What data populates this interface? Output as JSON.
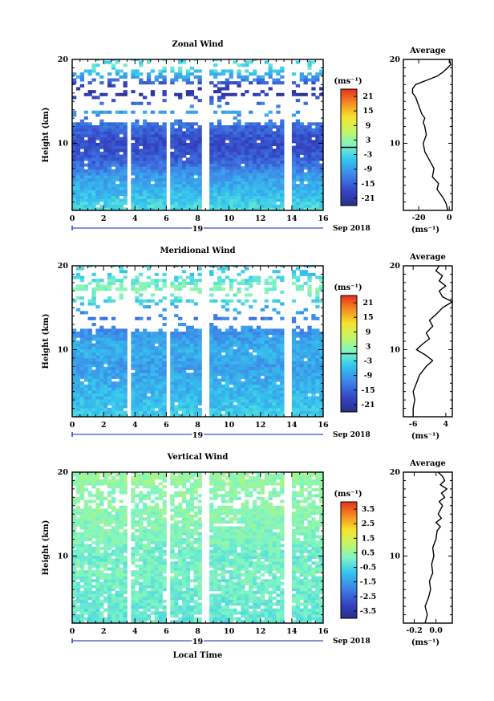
{
  "figure": {
    "date_label": "Sep 2018",
    "day_label": "19",
    "shared_xlabel": "Local Time"
  },
  "chart_data": [
    {
      "type": "heatmap",
      "title": "Zonal Wind",
      "xlabel": "",
      "ylabel": "Height (km)",
      "xlim": [
        0,
        16
      ],
      "ylim": [
        2,
        20
      ],
      "x_ticks": [
        0,
        2,
        4,
        6,
        8,
        10,
        12,
        14,
        16
      ],
      "y_ticks": [
        10,
        20
      ],
      "colorbar": {
        "unit": "(ms⁻¹)",
        "range": [
          -24,
          24
        ],
        "ticks": [
          21,
          15,
          9,
          3,
          -3,
          -9,
          -15,
          -21
        ],
        "tick_labels": [
          "21",
          "15",
          "9",
          "3",
          "-3",
          "-9",
          "-15",
          "-21"
        ],
        "contour_level": 0
      },
      "data_gaps_hours": [
        [
          3.4,
          3.8
        ],
        [
          5.9,
          6.3
        ],
        [
          8.2,
          8.7
        ],
        [
          13.5,
          13.9
        ]
      ],
      "profile_heights_km": [
        2,
        4,
        6,
        8,
        10,
        12,
        14,
        16,
        17,
        18,
        19
      ],
      "values_by_height": [
        -2,
        -6,
        -9,
        -15,
        -18,
        -14,
        -8,
        -22,
        -18,
        -8,
        -2
      ],
      "average": {
        "title": "Average",
        "xlabel": "(ms⁻¹)",
        "xlim": [
          -30,
          2
        ],
        "x_ticks": [
          -20,
          0
        ],
        "x_tick_labels": [
          "-20",
          "0"
        ],
        "y_ticks": [
          10,
          20
        ],
        "heights": [
          2.0,
          2.8,
          3.5,
          4.5,
          5.2,
          6.0,
          7.0,
          8.0,
          9.0,
          10.0,
          11.0,
          12.0,
          12.5,
          13.0,
          13.5,
          14.0,
          14.5,
          15.0,
          15.5,
          16.0,
          16.5,
          17.0,
          17.5,
          18.0,
          18.5,
          19.0,
          19.4,
          20.0
        ],
        "values": [
          -1,
          -2,
          -4,
          -8,
          -7,
          -11,
          -10,
          -13,
          -16,
          -17,
          -15,
          -16,
          -17,
          -16,
          -18,
          -19,
          -20,
          -21,
          -22,
          -24,
          -24,
          -22,
          -15,
          -8,
          -4,
          -1,
          1,
          0
        ]
      }
    },
    {
      "type": "heatmap",
      "title": "Meridional Wind",
      "xlabel": "",
      "ylabel": "Height (km)",
      "xlim": [
        0,
        16
      ],
      "ylim": [
        2,
        20
      ],
      "x_ticks": [
        0,
        2,
        4,
        6,
        8,
        10,
        12,
        14,
        16
      ],
      "y_ticks": [
        10,
        20
      ],
      "colorbar": {
        "unit": "(ms⁻¹)",
        "range": [
          -24,
          24
        ],
        "ticks": [
          21,
          15,
          9,
          3,
          -3,
          -9,
          -15,
          -21
        ],
        "tick_labels": [
          "21",
          "15",
          "9",
          "3",
          "-3",
          "-9",
          "-15",
          "-21"
        ],
        "contour_level": 0
      },
      "data_gaps_hours": [
        [
          3.4,
          3.8
        ],
        [
          5.9,
          6.3
        ],
        [
          8.2,
          8.7
        ],
        [
          13.5,
          13.9
        ]
      ],
      "profile_heights_km": [
        2,
        4,
        6,
        8,
        10,
        12,
        14,
        16,
        17,
        18,
        19
      ],
      "values_by_height": [
        -4,
        -6,
        -7,
        -9,
        -7,
        -10,
        -12,
        -2,
        2,
        0,
        -4
      ],
      "average": {
        "title": "Average",
        "xlabel": "(ms⁻¹)",
        "xlim": [
          -9,
          6
        ],
        "x_ticks": [
          -6,
          4
        ],
        "x_tick_labels": [
          "-6",
          "4"
        ],
        "y_ticks": [
          10,
          20
        ],
        "heights": [
          2.0,
          3.0,
          4.0,
          5.0,
          6.0,
          7.0,
          8.0,
          8.7,
          9.3,
          10.0,
          10.7,
          11.3,
          12.0,
          12.8,
          13.5,
          14.2,
          15.0,
          15.7,
          16.3,
          17.0,
          17.6,
          18.2,
          18.8,
          19.4,
          20.0
        ],
        "values": [
          -6,
          -6,
          -5.5,
          -6,
          -5,
          -4,
          -2,
          0,
          -2,
          -5,
          -3,
          -1,
          -2,
          0,
          -1,
          1,
          3,
          6,
          3,
          2,
          4,
          2,
          3,
          1,
          2
        ]
      }
    },
    {
      "type": "heatmap",
      "title": "Vertical Wind",
      "xlabel": "Local Time",
      "ylabel": "Height (km)",
      "xlim": [
        0,
        16
      ],
      "ylim": [
        2,
        20
      ],
      "x_ticks": [
        0,
        2,
        4,
        6,
        8,
        10,
        12,
        14,
        16
      ],
      "y_ticks": [
        10,
        20
      ],
      "colorbar": {
        "unit": "(ms⁻¹)",
        "range": [
          -4,
          4
        ],
        "ticks": [
          3.5,
          2.5,
          1.5,
          0.5,
          -0.5,
          -1.5,
          -2.5,
          -3.5
        ],
        "tick_labels": [
          "3.5",
          "2.5",
          "1.5",
          "0.5",
          "-0.5",
          "-1.5",
          "-2.5",
          "-3.5"
        ],
        "contour_level": null
      },
      "data_gaps_hours": [
        [
          3.4,
          3.8
        ],
        [
          5.9,
          6.3
        ],
        [
          8.2,
          8.7
        ],
        [
          13.5,
          13.9
        ]
      ],
      "profile_heights_km": [
        2,
        4,
        6,
        8,
        10,
        12,
        14,
        16,
        17,
        18,
        19
      ],
      "values_by_height": [
        -0.2,
        -0.1,
        0.0,
        0.1,
        0.0,
        0.2,
        0.3,
        0.4,
        0.3,
        0.4,
        0.5
      ],
      "average": {
        "title": "Average",
        "xlabel": "(ms⁻¹)",
        "xlim": [
          -0.3,
          0.15
        ],
        "x_ticks": [
          -0.2,
          0.0
        ],
        "x_tick_labels": [
          "-0.2",
          "0.0"
        ],
        "y_ticks": [
          10,
          20
        ],
        "heights": [
          2.0,
          3.0,
          4.0,
          5.0,
          6.0,
          7.0,
          8.0,
          9.0,
          10.0,
          11.0,
          12.0,
          13.0,
          13.5,
          14.0,
          14.5,
          15.0,
          16.0,
          16.5,
          17.0,
          17.5,
          18.0,
          18.5,
          19.0,
          19.5,
          20.0
        ],
        "values": [
          -0.1,
          -0.08,
          -0.1,
          -0.07,
          -0.05,
          -0.06,
          -0.03,
          -0.04,
          -0.02,
          -0.03,
          0.0,
          0.01,
          0.04,
          0.0,
          0.05,
          0.02,
          0.06,
          0.03,
          0.08,
          0.05,
          0.1,
          0.04,
          0.08,
          0.06,
          0.02
        ]
      }
    }
  ]
}
